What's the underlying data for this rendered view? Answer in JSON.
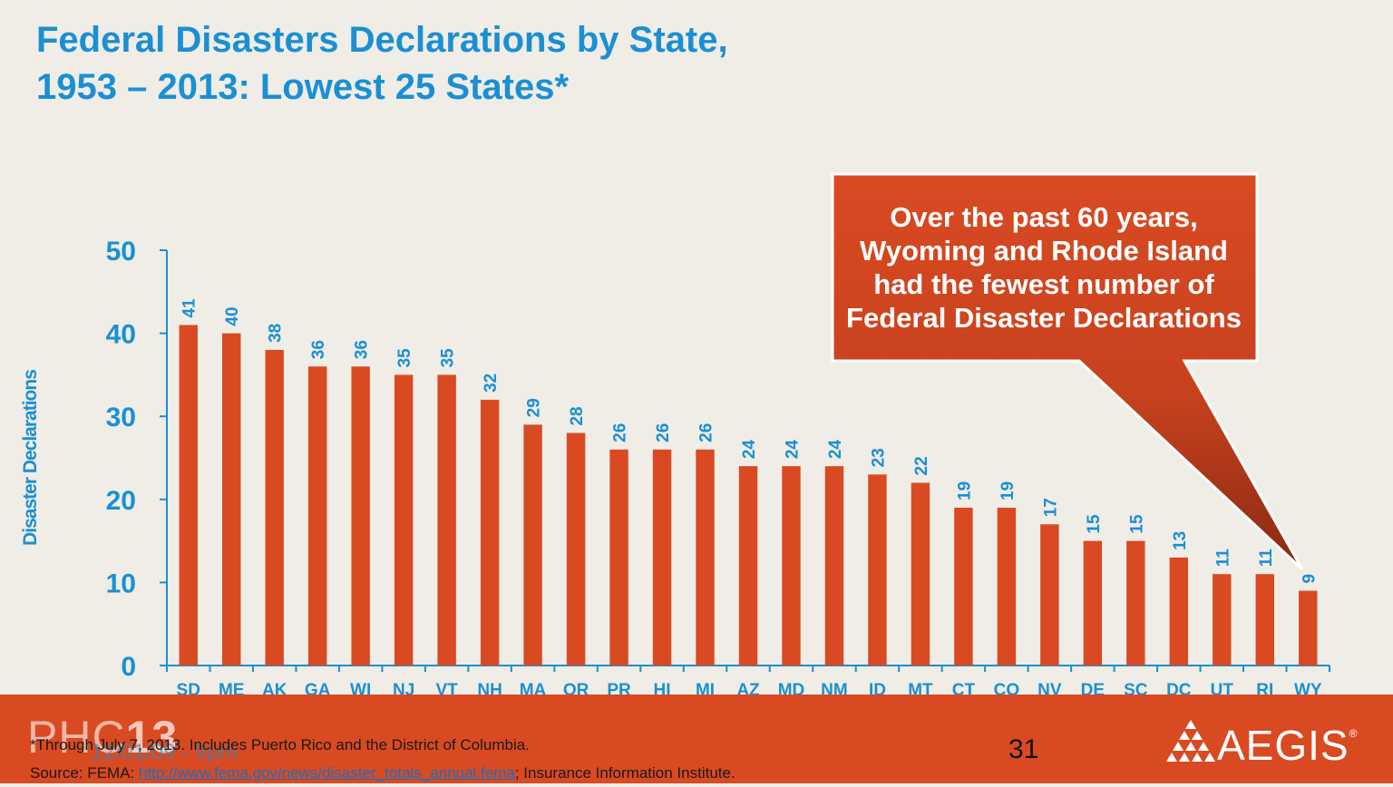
{
  "title": {
    "line1": "Federal Disasters Declarations by State,",
    "line2": "1953 – 2013: Lowest 25 States*"
  },
  "callout": {
    "text": "Over the past 60 years, Wyoming  and Rhode Island had the fewest number of Federal Disaster Declarations"
  },
  "colors": {
    "bar": "#d94a22",
    "accent": "#1b8fd3",
    "background": "#efede6",
    "footer": "#d94a22"
  },
  "chart_data": {
    "type": "bar",
    "ylabel": "Disaster Declarations",
    "xlabel": "",
    "ylim": [
      0,
      50
    ],
    "yticks": [
      0,
      10,
      20,
      30,
      40,
      50
    ],
    "grid": false,
    "categories": [
      "SD",
      "ME",
      "AK",
      "GA",
      "WI",
      "NJ",
      "VT",
      "NH",
      "MA",
      "OR",
      "PR",
      "HI",
      "MI",
      "AZ",
      "MD",
      "NM",
      "ID",
      "MT",
      "CT",
      "CO",
      "NV",
      "DE",
      "SC",
      "DC",
      "UT",
      "RI",
      "WY"
    ],
    "values": [
      41,
      40,
      38,
      36,
      36,
      35,
      35,
      32,
      29,
      28,
      26,
      26,
      26,
      24,
      24,
      24,
      23,
      22,
      19,
      19,
      17,
      15,
      15,
      13,
      11,
      11,
      9
    ]
  },
  "footer": {
    "logo_prefix": "PHC",
    "logo_number": "13",
    "date_text": "12/01/09 - 9pm",
    "footnote_line1": "*Through July 7, 2013. Includes Puerto Rico and the District of Columbia.",
    "source_prefix": "Source:  FEMA: ",
    "source_link": "http://www.fema.gov/news/disaster_totals_annual.fema",
    "source_suffix": "; Insurance Information Institute.",
    "page_number": "31",
    "brand": "AEGIS",
    "brand_mark": "®"
  }
}
